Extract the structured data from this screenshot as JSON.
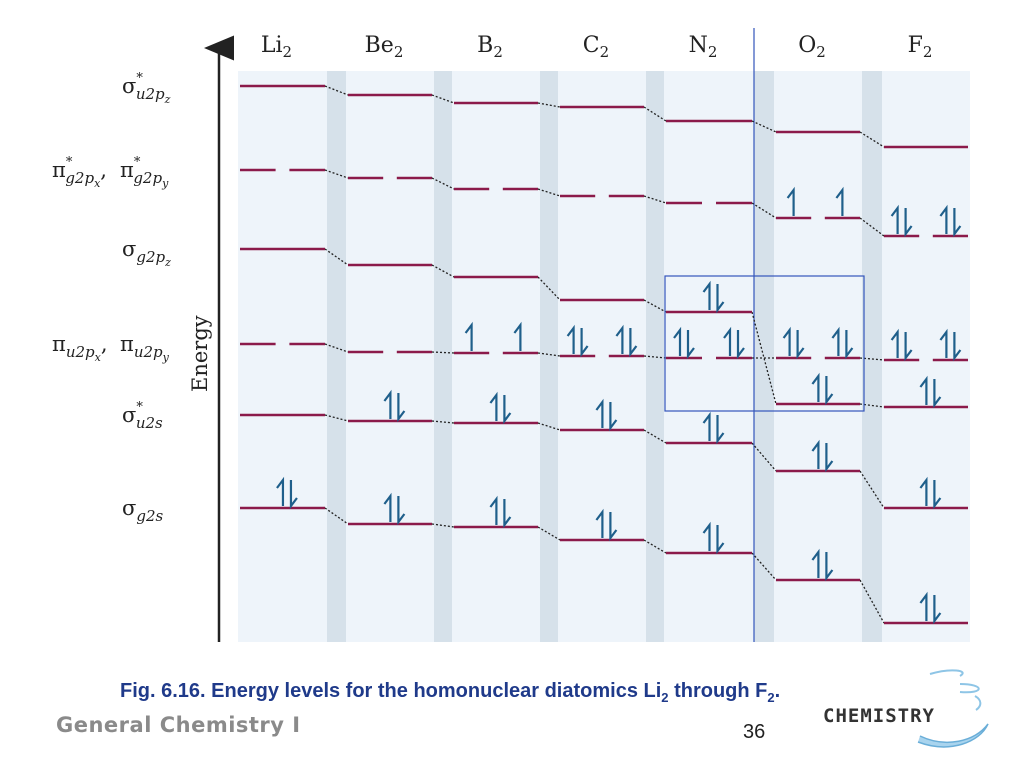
{
  "molecules": [
    {
      "name": "Li",
      "subscript": "2",
      "levels": {
        "s2s": 508,
        "s2s_star": 415,
        "pi": 344,
        "s2p": 249,
        "pi_star": 170,
        "s2p_star": 86
      },
      "electrons": {
        "s2s": "pair"
      }
    },
    {
      "name": "Be",
      "subscript": "2",
      "levels": {
        "s2s": 524,
        "s2s_star": 421,
        "pi": 352,
        "s2p": 265,
        "pi_star": 178,
        "s2p_star": 95
      },
      "electrons": {
        "s2s": "pair",
        "s2s_star": "pair"
      }
    },
    {
      "name": "B",
      "subscript": "2",
      "levels": {
        "s2s": 527,
        "s2s_star": 423,
        "pi": 353,
        "s2p": 277,
        "pi_star": 189,
        "s2p_star": 103
      },
      "electrons": {
        "s2s": "pair",
        "s2s_star": "pair",
        "pi": [
          "up",
          "up"
        ]
      }
    },
    {
      "name": "C",
      "subscript": "2",
      "levels": {
        "s2s": 540,
        "s2s_star": 430,
        "pi": 356,
        "s2p": 300,
        "pi_star": 196,
        "s2p_star": 107
      },
      "electrons": {
        "s2s": "pair",
        "s2s_star": "pair",
        "pi": [
          "pair",
          "pair"
        ]
      }
    },
    {
      "name": "N",
      "subscript": "2",
      "levels": {
        "s2s": 553,
        "s2s_star": 443,
        "pi": 358,
        "s2p": 312,
        "pi_star": 203,
        "s2p_star": 121
      },
      "electrons": {
        "s2s": "pair",
        "s2s_star": "pair",
        "pi": [
          "pair",
          "pair"
        ],
        "s2p": "pair"
      }
    },
    {
      "name": "O",
      "subscript": "2",
      "levels": {
        "s2s": 580,
        "s2s_star": 471,
        "s2p": 404,
        "pi": 358,
        "pi_star": 218,
        "s2p_star": 132
      },
      "electrons": {
        "s2s": "pair",
        "s2s_star": "pair",
        "s2p": "pair",
        "pi": [
          "pair",
          "pair"
        ],
        "pi_star": [
          "up",
          "up"
        ]
      }
    },
    {
      "name": "F",
      "subscript": "2",
      "levels": {
        "s2s": 623,
        "s2s_star": 508,
        "s2p": 407,
        "pi": 360,
        "pi_star": 236,
        "s2p_star": 147
      },
      "electrons": {
        "s2s": "pair",
        "s2s_star": "pair",
        "s2p": "pair",
        "pi": [
          "pair",
          "pair"
        ],
        "pi_star": [
          "pair",
          "pair"
        ]
      }
    }
  ],
  "orbital_labels": [
    {
      "key": "s2p_star",
      "symbol": "σ",
      "star": "*",
      "sub": "u2p",
      "subsub": "z"
    },
    {
      "key": "pi_star",
      "symbol": "π",
      "star": "*",
      "sub": "g2p",
      "subsub": "x",
      "symbol2": "π",
      "star2": "*",
      "sub2": "g2p",
      "subsub2": "y"
    },
    {
      "key": "s2p",
      "symbol": "σ",
      "star": "",
      "sub": "g2p",
      "subsub": "z"
    },
    {
      "key": "pi",
      "symbol": "π",
      "star": "",
      "sub": "u2p",
      "subsub": "x",
      "symbol2": "π",
      "star2": "",
      "sub2": "u2p",
      "subsub2": "y"
    },
    {
      "key": "s2s_star",
      "symbol": "σ",
      "star": "*",
      "sub": "u2s",
      "subsub": ""
    },
    {
      "key": "s2s",
      "symbol": "σ",
      "star": "",
      "sub": "g2s",
      "subsub": ""
    }
  ],
  "axis": {
    "label": "Energy"
  },
  "caption": {
    "prefix": "Fig. 6.16.",
    "text": "Energy levels for the homonuclear diatomics Li",
    "sub1": "2",
    "mid": " through F",
    "sub2": "2",
    "end": "."
  },
  "footer": {
    "course": "General Chemistry I",
    "page": "36",
    "logo_text": "CHEMISTRY"
  },
  "colors": {
    "level": "#8b1a4a",
    "arrow": "#1f5f8b",
    "panel": "#eef4fa",
    "band": "#d6e1ea",
    "frame": "#3355bb"
  }
}
